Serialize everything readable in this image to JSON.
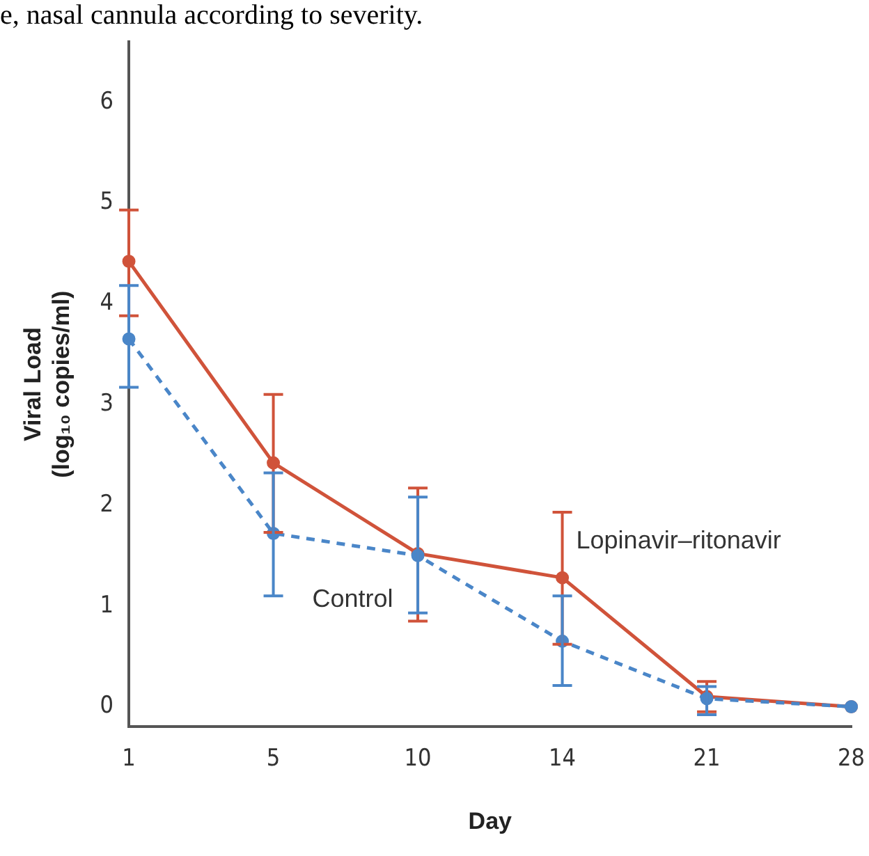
{
  "chart_data": {
    "type": "line",
    "xlabel": "Day",
    "ylabel": "Viral Load\n(log₁₀ copies/ml)",
    "annotations": [
      "e, nasal cannula according to severity."
    ],
    "categories": [
      "1",
      "5",
      "10",
      "14",
      "21",
      "28"
    ],
    "ylim": [
      -0.2,
      6.6
    ],
    "yticks": [
      0,
      1,
      2,
      3,
      4,
      5,
      6
    ],
    "grid": false,
    "legend": false,
    "marker": "circle",
    "series": [
      {
        "name": "Lopinavir–ritonavir",
        "color": "#d0533a",
        "line_style": "solid",
        "values": [
          4.42,
          2.42,
          1.52,
          1.28,
          0.1,
          0.0
        ],
        "errors": [
          [
            3.88,
            4.93
          ],
          [
            1.73,
            3.1
          ],
          [
            0.85,
            2.17
          ],
          [
            0.62,
            1.93
          ],
          [
            -0.05,
            0.25
          ],
          null
        ]
      },
      {
        "name": "Control",
        "color": "#4a86c8",
        "line_style": "dashed",
        "values": [
          3.65,
          1.72,
          1.5,
          0.65,
          0.08,
          0.0
        ],
        "errors": [
          [
            3.17,
            4.18
          ],
          [
            1.1,
            2.32
          ],
          [
            0.93,
            2.08
          ],
          [
            0.21,
            1.1
          ],
          [
            -0.08,
            0.2
          ],
          null
        ]
      }
    ]
  }
}
